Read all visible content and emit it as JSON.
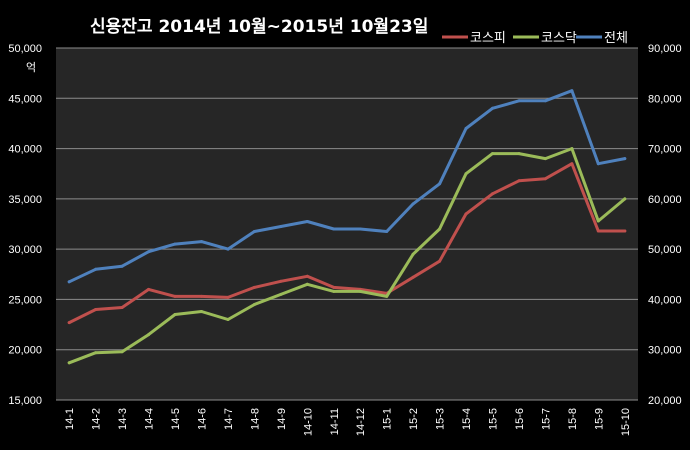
{
  "chart_data": {
    "type": "line",
    "title": "신용잔고 2014년 10월~2015년 10월23일",
    "unit_left": "억",
    "y_left": {
      "min": 15000,
      "max": 50000,
      "ticks": [
        "15,000",
        "20,000",
        "25,000",
        "30,000",
        "35,000",
        "40,000",
        "45,000",
        "50,000"
      ]
    },
    "y_right": {
      "min": 20000,
      "max": 90000,
      "ticks": [
        "20,000",
        "30,000",
        "40,000",
        "50,000",
        "60,000",
        "70,000",
        "80,000",
        "90,000"
      ]
    },
    "categories": [
      "14-1",
      "14-2",
      "14-3",
      "14-4",
      "14-5",
      "14-6",
      "14-7",
      "14-8",
      "14-9",
      "14-10",
      "14-11",
      "14-12",
      "15-1",
      "15-2",
      "15-3",
      "15-4",
      "15-5",
      "15-6",
      "15-7",
      "15-8",
      "15-9",
      "15-10"
    ],
    "grid": true,
    "legend_position": "top-right",
    "series": [
      {
        "name": "코스피",
        "axis": "left",
        "color": "#c0504d",
        "values": [
          22700,
          24000,
          24200,
          26000,
          25300,
          25300,
          25200,
          26200,
          26800,
          27300,
          26200,
          26000,
          25600,
          27200,
          28800,
          33500,
          35500,
          36800,
          37000,
          38500,
          31800,
          31800
        ]
      },
      {
        "name": "코스닥",
        "axis": "left",
        "color": "#9bbb59",
        "values": [
          18700,
          19700,
          19800,
          21500,
          23500,
          23800,
          23000,
          24500,
          25500,
          26500,
          25800,
          25800,
          25300,
          29500,
          32000,
          37500,
          39500,
          39500,
          39000,
          40000,
          32800,
          35000
        ]
      },
      {
        "name": "전체",
        "axis": "right",
        "color": "#4f81bd",
        "values": [
          43500,
          46000,
          46600,
          49500,
          51000,
          51500,
          50000,
          53500,
          54500,
          55500,
          54000,
          54000,
          53500,
          59000,
          63000,
          74000,
          78000,
          79500,
          79500,
          81500,
          67000,
          68000
        ]
      }
    ]
  }
}
